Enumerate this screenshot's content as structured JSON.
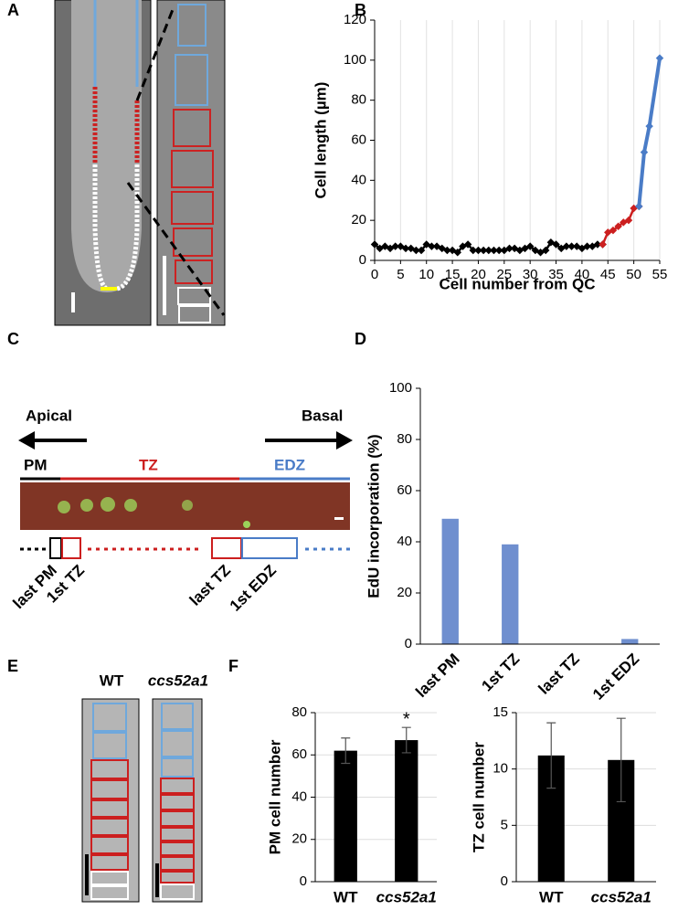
{
  "panels": {
    "a": "A",
    "b": "B",
    "c": "C",
    "d": "D",
    "e": "E",
    "f": "F"
  },
  "diagram_c": {
    "apical": "Apical",
    "basal": "Basal",
    "pm": "PM",
    "tz": "TZ",
    "edz": "EDZ",
    "last_pm": "last PM",
    "first_tz": "1st TZ",
    "last_tz": "last TZ",
    "first_edz": "1st EDZ"
  },
  "image_e": {
    "wt": "WT",
    "mutant": "ccs52a1"
  },
  "chart_data": [
    {
      "type": "line",
      "y_label": "Cell length (µm)",
      "x_label": "Cell number from QC",
      "xlim": [
        0,
        55
      ],
      "xticks": [
        0,
        5,
        10,
        15,
        20,
        25,
        30,
        35,
        40,
        45,
        50,
        55
      ],
      "ylim": [
        0,
        120
      ],
      "yticks": [
        0,
        20,
        40,
        60,
        80,
        100,
        120
      ],
      "grid": "x",
      "series": [
        {
          "color": "#000000",
          "x": [
            0,
            1,
            2,
            3,
            4,
            5,
            6,
            7,
            8,
            9,
            10,
            11,
            12,
            13,
            14,
            15,
            16,
            17,
            18,
            19,
            20,
            21,
            22,
            23,
            24,
            25,
            26,
            27,
            28,
            29,
            30,
            31,
            32,
            33,
            34,
            35,
            36,
            37,
            38,
            39,
            40,
            41,
            42,
            43,
            44
          ],
          "values": [
            8,
            6,
            7,
            6,
            7,
            7,
            6,
            6,
            5,
            5,
            8,
            7,
            7,
            6,
            5,
            5,
            4,
            7,
            8,
            5,
            5,
            5,
            5,
            5,
            5,
            5,
            6,
            6,
            5,
            6,
            7,
            5,
            4,
            5,
            9,
            8,
            6,
            7,
            7,
            7,
            6,
            7,
            7,
            8,
            8
          ]
        },
        {
          "color": "#cc1f1f",
          "x": [
            44,
            45,
            46,
            47,
            48,
            49,
            50,
            51
          ],
          "values": [
            8,
            14,
            15,
            17,
            19,
            20,
            26,
            27
          ]
        },
        {
          "color": "#4a7cc7",
          "x": [
            51,
            52,
            53,
            55
          ],
          "values": [
            27,
            54,
            67,
            101
          ]
        }
      ]
    },
    {
      "type": "bar",
      "y_label": "EdU incorporation (%)",
      "categories": [
        "last PM",
        "1st TZ",
        "last TZ",
        "1st EDZ"
      ],
      "values": [
        49,
        39,
        0,
        2
      ],
      "color": "#6f8fcf",
      "ylim": [
        0,
        100
      ],
      "yticks": [
        0,
        20,
        40,
        60,
        80,
        100
      ],
      "grid": false
    },
    {
      "type": "bar",
      "y_label": "PM cell number",
      "categories": [
        "WT",
        "ccs52a1"
      ],
      "values": [
        62,
        67
      ],
      "errors": [
        6,
        6
      ],
      "color": "#000000",
      "ylim": [
        0,
        80
      ],
      "yticks": [
        0,
        20,
        40,
        60,
        80
      ],
      "grid": "y",
      "annotation": "*"
    },
    {
      "type": "bar",
      "y_label": "TZ cell number",
      "categories": [
        "WT",
        "ccs52a1"
      ],
      "values": [
        11.2,
        10.8
      ],
      "errors": [
        2.9,
        3.7
      ],
      "color": "#000000",
      "ylim": [
        0,
        15
      ],
      "yticks": [
        0,
        5,
        10,
        15
      ],
      "grid": "y"
    }
  ]
}
